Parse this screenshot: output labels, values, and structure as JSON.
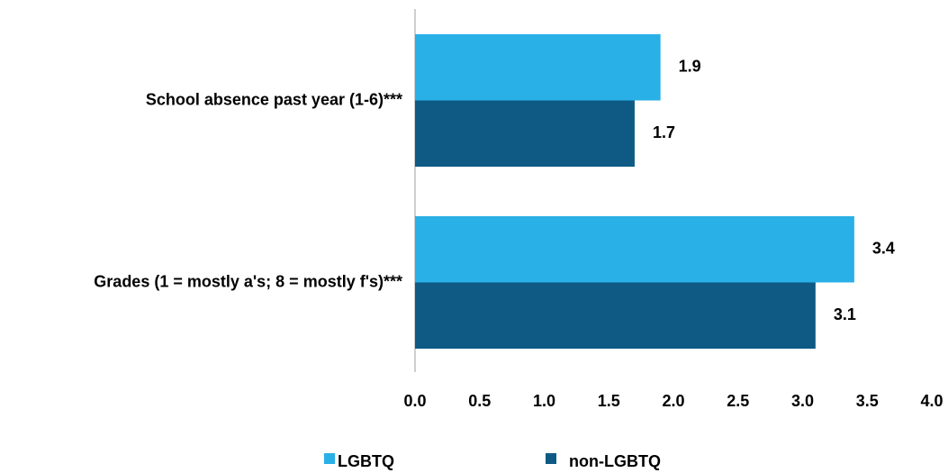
{
  "chart_data": {
    "type": "hbar",
    "categories": [
      "School absence past year (1-6)***",
      "Grades (1 = mostly a's; 8 = mostly f's)***"
    ],
    "series": [
      {
        "name": "LGBTQ",
        "color": "#29b0e6",
        "values": [
          1.9,
          3.4
        ]
      },
      {
        "name": "non-LGBTQ",
        "color": "#0e5a85",
        "values": [
          1.7,
          3.1
        ]
      }
    ],
    "xlim": [
      0,
      4
    ],
    "xticks": [
      {
        "value": 0,
        "label": "0.0"
      },
      0.5,
      {
        "value": 1,
        "label": "1.0"
      },
      1.5,
      {
        "value": 2,
        "label": "2.0"
      },
      2.5,
      {
        "value": 3,
        "label": "3.0"
      },
      3.5,
      {
        "value": 4,
        "label": "4.0"
      }
    ],
    "legend": "bottom"
  }
}
